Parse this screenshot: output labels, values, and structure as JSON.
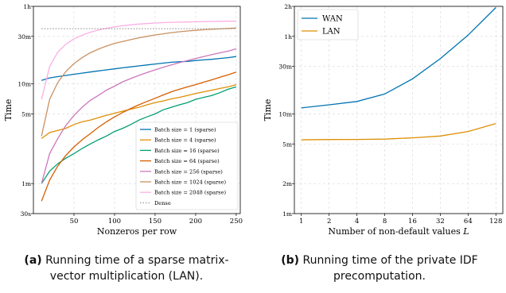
{
  "captions": {
    "a": {
      "tag": "(a)",
      "text": "Running time of a sparse matrix-vector multiplication (LAN)."
    },
    "b": {
      "tag": "(b)",
      "text": "Running time of the private IDF precomputation."
    }
  },
  "chart_data": [
    {
      "id": "a",
      "type": "line",
      "xlabel": "Nonzeros per row",
      "ylabel": "Time",
      "xscale": "linear",
      "yscale": "log",
      "xlim": [
        0,
        255
      ],
      "ylim_seconds": [
        30,
        3600
      ],
      "xticks": [
        50,
        100,
        150,
        200,
        250
      ],
      "yticks": [
        {
          "value": 30,
          "label": "30s"
        },
        {
          "value": 60,
          "label": "1m"
        },
        {
          "value": 300,
          "label": "5m"
        },
        {
          "value": 600,
          "label": "10m"
        },
        {
          "value": 1800,
          "label": "30m"
        },
        {
          "value": 3600,
          "label": "1h"
        }
      ],
      "grid": true,
      "legend_position": "lower-right",
      "x": [
        10,
        20,
        30,
        40,
        50,
        60,
        70,
        80,
        90,
        100,
        110,
        120,
        130,
        140,
        150,
        160,
        170,
        180,
        190,
        200,
        210,
        220,
        230,
        240,
        250
      ],
      "series": [
        {
          "name": "Batch size = 1 (sparse)",
          "color": "#0173b2",
          "style": "solid",
          "values": [
            650,
            690,
            710,
            730,
            750,
            770,
            790,
            810,
            830,
            850,
            870,
            890,
            910,
            930,
            950,
            970,
            990,
            1000,
            1010,
            1030,
            1045,
            1060,
            1080,
            1100,
            1130
          ]
        },
        {
          "name": "Batch size = 4 (sparse)",
          "color": "#de8f05",
          "style": "solid",
          "values": [
            170,
            195,
            205,
            215,
            235,
            250,
            260,
            275,
            290,
            305,
            320,
            335,
            350,
            370,
            390,
            405,
            425,
            440,
            460,
            480,
            500,
            520,
            540,
            560,
            590
          ]
        },
        {
          "name": "Batch size = 16 (sparse)",
          "color": "#029e73",
          "style": "solid",
          "values": [
            60,
            80,
            95,
            108,
            120,
            135,
            150,
            165,
            180,
            200,
            215,
            235,
            260,
            280,
            300,
            330,
            350,
            370,
            390,
            420,
            440,
            460,
            490,
            530,
            560
          ]
        },
        {
          "name": "Batch size = 64 (sparse)",
          "color": "#d55e00",
          "style": "solid",
          "values": [
            40,
            65,
            90,
            115,
            140,
            165,
            190,
            220,
            250,
            280,
            310,
            340,
            370,
            400,
            430,
            465,
            500,
            530,
            560,
            590,
            625,
            660,
            700,
            740,
            790
          ]
        },
        {
          "name": "Batch size = 256 (sparse)",
          "color": "#cc78bc",
          "style": "solid",
          "values": [
            60,
            120,
            170,
            230,
            290,
            350,
            410,
            460,
            520,
            570,
            630,
            680,
            730,
            780,
            830,
            880,
            930,
            980,
            1030,
            1080,
            1130,
            1180,
            1230,
            1280,
            1350
          ]
        },
        {
          "name": "Batch size = 1024 (sparse)",
          "color": "#ca9161",
          "style": "solid",
          "values": [
            180,
            420,
            620,
            800,
            960,
            1100,
            1230,
            1340,
            1440,
            1530,
            1600,
            1670,
            1740,
            1800,
            1860,
            1910,
            1960,
            2000,
            2040,
            2070,
            2100,
            2120,
            2140,
            2160,
            2180
          ]
        },
        {
          "name": "Batch size = 2048 (sparse)",
          "color": "#fbafe4",
          "style": "solid",
          "values": [
            420,
            900,
            1250,
            1500,
            1700,
            1850,
            1980,
            2080,
            2170,
            2240,
            2300,
            2350,
            2390,
            2420,
            2450,
            2470,
            2490,
            2500,
            2510,
            2520,
            2530,
            2540,
            2550,
            2555,
            2560
          ]
        },
        {
          "name": "Dense",
          "color": "#888888",
          "style": "dotted",
          "values": [
            2150,
            2150,
            2150,
            2150,
            2150,
            2150,
            2150,
            2150,
            2150,
            2150,
            2150,
            2150,
            2150,
            2150,
            2150,
            2150,
            2150,
            2150,
            2150,
            2150,
            2150,
            2150,
            2150,
            2150,
            2150
          ]
        }
      ]
    },
    {
      "id": "b",
      "type": "line",
      "xlabel": "Number of non-default values L",
      "xlabel_main": "Number of non-default values ",
      "xlabel_var": "L",
      "ylabel": "Time",
      "xscale": "log2",
      "yscale": "log",
      "ylim_seconds": [
        60,
        7200
      ],
      "categories": [
        1,
        2,
        4,
        8,
        16,
        32,
        64,
        128
      ],
      "xticks": [
        "1",
        "2",
        "4",
        "8",
        "16",
        "32",
        "64",
        "128"
      ],
      "yticks": [
        {
          "value": 60,
          "label": "1m"
        },
        {
          "value": 120,
          "label": "2m"
        },
        {
          "value": 300,
          "label": "5m"
        },
        {
          "value": 600,
          "label": "10m"
        },
        {
          "value": 1800,
          "label": "30m"
        },
        {
          "value": 3600,
          "label": "1h"
        },
        {
          "value": 7200,
          "label": "2h"
        }
      ],
      "grid": true,
      "legend_position": "top-left",
      "series": [
        {
          "name": "WAN",
          "color": "#0173b2",
          "style": "solid",
          "values": [
            690,
            740,
            800,
            950,
            1350,
            2150,
            3700,
            7000
          ]
        },
        {
          "name": "LAN",
          "color": "#de8f05",
          "style": "solid",
          "values": [
            330,
            332,
            333,
            335,
            345,
            360,
            400,
            480
          ]
        }
      ]
    }
  ]
}
